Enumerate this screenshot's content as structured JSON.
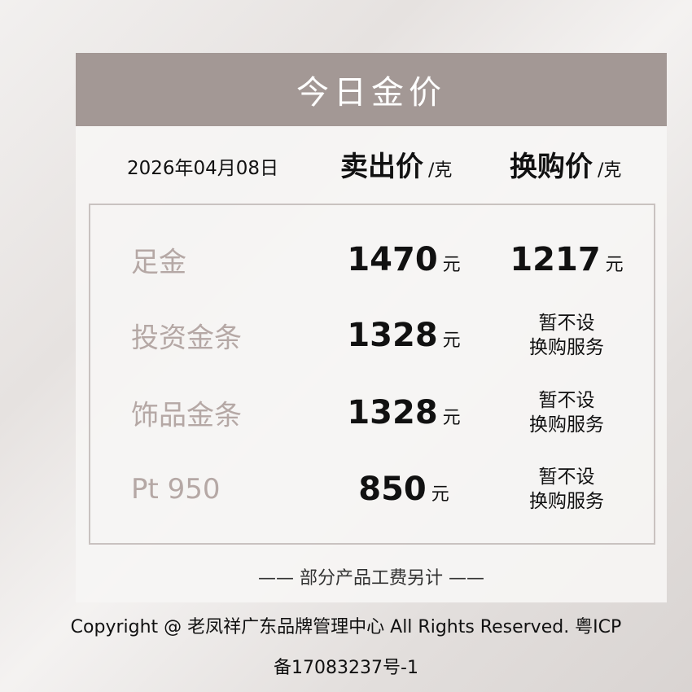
{
  "title": "今日金价",
  "date": "2026年04月08日",
  "columns": {
    "sell": "卖出价",
    "exchange": "换购价",
    "unit": "/克"
  },
  "currency": "元",
  "rows": [
    {
      "label": "足金",
      "sell": "1470",
      "exchange": "1217"
    },
    {
      "label": "投资金条",
      "sell": "1328",
      "exchange_na": [
        "暂不设",
        "换购服务"
      ]
    },
    {
      "label": "饰品金条",
      "sell": "1328",
      "exchange_na": [
        "暂不设",
        "换购服务"
      ]
    },
    {
      "label": "Pt 950",
      "sell": "850",
      "exchange_na": [
        "暂不设",
        "换购服务"
      ]
    }
  ],
  "note": "—— 部分产品工费另计 ——",
  "copyright": "Copyright @ 老凤祥广东品牌管理中心 All Rights Reserved. 粤ICP",
  "icp": "备17083237号-1",
  "colors": {
    "header": "#a39895",
    "label": "#b5a8a5"
  }
}
